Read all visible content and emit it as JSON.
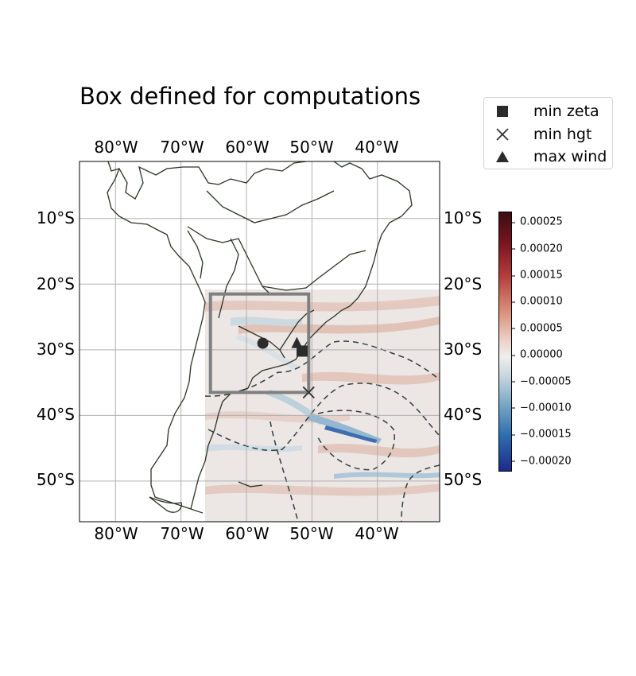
{
  "title": "Box defined for computations",
  "lon_labels": [
    "80°W",
    "70°W",
    "60°W",
    "50°W",
    "40°W"
  ],
  "lat_labels": [
    "10°S",
    "20°S",
    "30°S",
    "40°S",
    "50°S"
  ],
  "legend": [
    {
      "marker": "square",
      "label": "min zeta"
    },
    {
      "marker": "cross",
      "label": "min hgt"
    },
    {
      "marker": "triangle",
      "label": "max wind"
    }
  ],
  "colorbar": {
    "ticks": [
      "0.00025",
      "0.00020",
      "0.00015",
      "0.00010",
      "0.00005",
      "0.00000",
      "−0.00005",
      "−0.00010",
      "−0.00015",
      "−0.00020"
    ],
    "range": [
      -0.00022,
      0.00027
    ],
    "cmap": "balance (blue to dark red)"
  },
  "map": {
    "extent_lon": [
      -85.5,
      -30.5
    ],
    "extent_lat": [
      -56.2,
      -1.3
    ],
    "box": {
      "lon": [
        -65.5,
        -50.5
      ],
      "lat": [
        -36.5,
        -21.5
      ],
      "color": "#808080"
    },
    "markers": {
      "circle_lonlat": [
        -57.5,
        -29
      ],
      "min_zeta_lonlat": [
        -51.5,
        -30.2
      ],
      "min_hgt_lonlat": [
        -50.5,
        -36.5
      ],
      "max_wind_lonlat": [
        -52.3,
        -29.0
      ]
    },
    "field_extent_lon": [
      -66.5,
      -30.5
    ],
    "field_extent_lat": [
      -56.2,
      -21.0
    ],
    "colors": {
      "coast": "#2b3324",
      "grid": "#b0b0b0",
      "contour": "#2f3f3a"
    }
  }
}
